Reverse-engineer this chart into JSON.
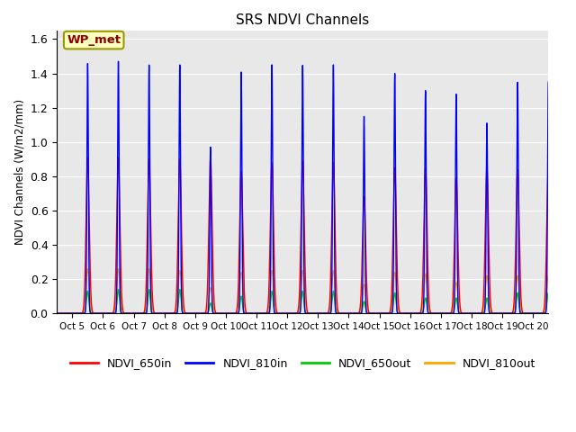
{
  "title": "SRS NDVI Channels",
  "ylabel": "NDVI Channels (W/m2/mm)",
  "xlabel": "",
  "annotation": "WP_met",
  "annotation_color": "#8B0000",
  "annotation_bg": "#FFFFC0",
  "annotation_border": "#999900",
  "ylim": [
    0.0,
    1.65
  ],
  "yticks": [
    0.0,
    0.2,
    0.4,
    0.6,
    0.8,
    1.0,
    1.2,
    1.4,
    1.6
  ],
  "bg_color": "#E8E8E8",
  "legend_labels": [
    "NDVI_650in",
    "NDVI_810in",
    "NDVI_650out",
    "NDVI_810out"
  ],
  "legend_colors": [
    "#FF0000",
    "#0000FF",
    "#00CC00",
    "#FFA500"
  ],
  "series_colors": {
    "ndvi_650in": "#FF0000",
    "ndvi_810in": "#0000FF",
    "ndvi_650out": "#00CC00",
    "ndvi_810out": "#FFA500"
  },
  "x_tick_labels": [
    "Oct 5",
    "Oct 6",
    "Oct 7",
    "Oct 8",
    "Oct 9",
    "Oct 10",
    "Oct 11",
    "Oct 12",
    "Oct 13",
    "Oct 14",
    "Oct 15",
    "Oct 16",
    "Oct 17",
    "Oct 18",
    "Oct 19",
    "Oct 20"
  ],
  "peaks_650in": [
    0.91,
    0.91,
    0.9,
    0.9,
    0.91,
    0.83,
    0.88,
    0.89,
    0.88,
    0.68,
    0.85,
    0.85,
    0.79,
    0.85,
    0.84,
    0.84
  ],
  "peaks_810in": [
    1.46,
    1.47,
    1.45,
    1.45,
    0.97,
    1.41,
    1.45,
    1.45,
    1.45,
    1.15,
    1.4,
    1.3,
    1.28,
    1.11,
    1.35,
    1.35
  ],
  "peaks_650out": [
    0.13,
    0.14,
    0.14,
    0.14,
    0.06,
    0.1,
    0.13,
    0.13,
    0.13,
    0.07,
    0.12,
    0.09,
    0.09,
    0.09,
    0.12,
    0.12
  ],
  "peaks_810out": [
    0.26,
    0.26,
    0.26,
    0.25,
    0.15,
    0.24,
    0.25,
    0.25,
    0.25,
    0.17,
    0.24,
    0.23,
    0.18,
    0.22,
    0.22,
    0.22
  ],
  "spike_blue_hw": 0.06,
  "spike_red_hw": 0.13,
  "spike_green_hw": 0.1,
  "spike_orange_hw": 0.14,
  "n_days": 16,
  "xlim": [
    -0.5,
    15.5
  ]
}
